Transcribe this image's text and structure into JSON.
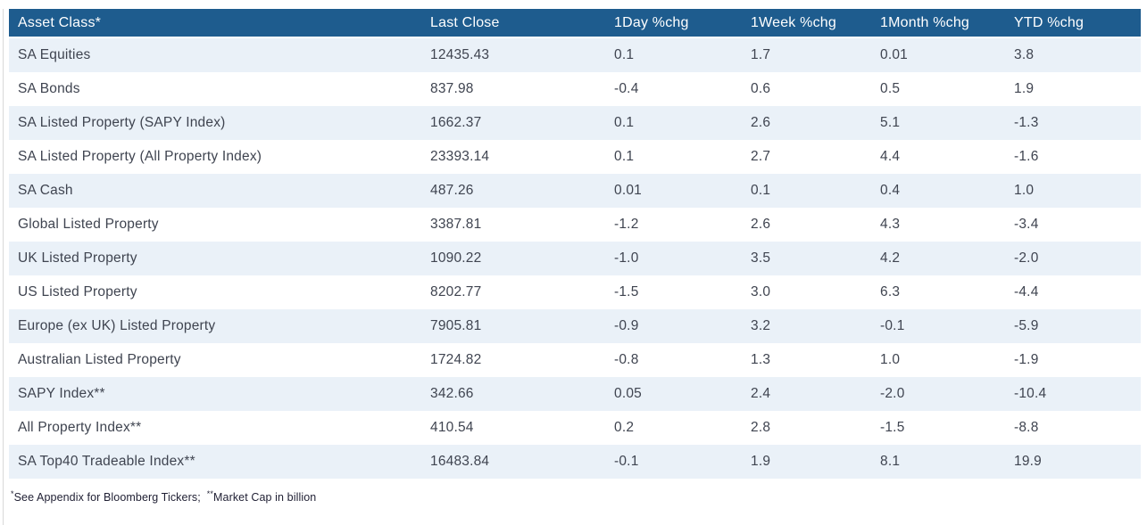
{
  "colors": {
    "header_bg": "#1E5C8E",
    "header_text": "#FFFFFF",
    "row_alt_bg": "#EAF1F8",
    "row_bg": "#FFFFFF",
    "cell_text": "#3F4450"
  },
  "table": {
    "columns": [
      "Asset Class*",
      "Last Close",
      "1Day %chg",
      "1Week %chg",
      "1Month %chg",
      "YTD %chg"
    ],
    "rows": [
      [
        "SA Equities",
        "12435.43",
        "0.1",
        "1.7",
        "0.01",
        "3.8"
      ],
      [
        "SA Bonds",
        "837.98",
        "-0.4",
        "0.6",
        "0.5",
        "1.9"
      ],
      [
        "SA Listed Property (SAPY Index)",
        "1662.37",
        "0.1",
        "2.6",
        "5.1",
        "-1.3"
      ],
      [
        "SA Listed Property (All Property Index)",
        "23393.14",
        "0.1",
        "2.7",
        "4.4",
        "-1.6"
      ],
      [
        "SA Cash",
        "487.26",
        "0.01",
        "0.1",
        "0.4",
        "1.0"
      ],
      [
        "Global Listed Property",
        "3387.81",
        "-1.2",
        "2.6",
        "4.3",
        "-3.4"
      ],
      [
        "UK Listed Property",
        "1090.22",
        "-1.0",
        "3.5",
        "4.2",
        "-2.0"
      ],
      [
        "US Listed Property",
        "8202.77",
        "-1.5",
        "3.0",
        "6.3",
        "-4.4"
      ],
      [
        "Europe (ex UK) Listed Property",
        "7905.81",
        "-0.9",
        "3.2",
        "-0.1",
        "-5.9"
      ],
      [
        "Australian Listed Property",
        "1724.82",
        "-0.8",
        "1.3",
        "1.0",
        "-1.9"
      ],
      [
        "SAPY Index**",
        "342.66",
        "0.05",
        "2.4",
        "-2.0",
        "-10.4"
      ],
      [
        "All Property Index**",
        "410.54",
        "0.2",
        "2.8",
        "-1.5",
        "-8.8"
      ],
      [
        "SA Top40 Tradeable Index**",
        "16483.84",
        "-0.1",
        "1.9",
        "8.1",
        "19.9"
      ]
    ],
    "footnote": {
      "sup1": "*",
      "part1": "See Appendix for Bloomberg Tickers;",
      "sup2": "**",
      "part2": "Market Cap in billion"
    }
  }
}
